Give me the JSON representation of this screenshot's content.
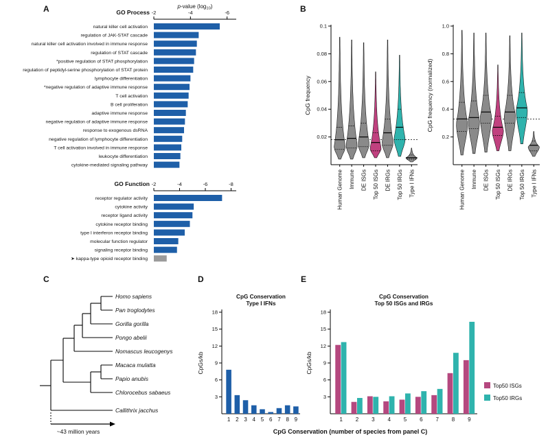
{
  "panels": {
    "A": "A",
    "B": "B",
    "C": "C",
    "D": "D",
    "E": "E"
  },
  "shared_axis_label": "CpG Conservation (number of species from panel C)",
  "tree": {
    "species": [
      "Homo sapiens",
      "Pan troglodytes",
      "Gorilla gorilla",
      "Pongo abelii",
      "Nomascus leucogenys",
      "Macaca mulatta",
      "Papio anubis",
      "Chlorocebus sabaeus",
      "Callithrix jacchus"
    ],
    "annotation": "~43 million years"
  },
  "chart_data": [
    {
      "id": "go_process",
      "type": "bar",
      "orientation": "horizontal",
      "title": "GO Process",
      "xlabel": "p-value (log10)",
      "xticks": [
        "-2",
        "-4",
        "-6"
      ],
      "xlim": [
        -2,
        -6.5
      ],
      "bar_color": "#1e5fa8",
      "label_color": "#1e5fa8",
      "categories": [
        "natural killer cell activation",
        "regulation of JAK-STAT cascade",
        "natural killer cell activation involved in immune response",
        "regulation of STAT cascade",
        "*positive regulation of STAT phosphorylation",
        "regulation of peptidyl-serine phosphorylation of STAT protein",
        "lymphocyte differentiation",
        "*negative regulation of adaptive immune response",
        "T cell activation",
        "B cell proliferation",
        "adaptive immune response",
        "negative regulation of adaptive immune response",
        "response to exogenous dsRNA",
        "negative regulation of lymphocyte differentiation",
        "T cell activation involved in immune response",
        "leukocyte differentiation",
        "cytokine-mediated signaling pathway"
      ],
      "values": [
        -5.6,
        -4.45,
        -4.35,
        -4.3,
        -4.2,
        -4.15,
        -4.0,
        -3.95,
        -3.9,
        -3.85,
        -3.75,
        -3.7,
        -3.65,
        -3.55,
        -3.5,
        -3.45,
        -3.4
      ]
    },
    {
      "id": "go_function",
      "type": "bar",
      "orientation": "horizontal",
      "title": "GO Function",
      "xticks": [
        "-2",
        "-4",
        "-6",
        "-8"
      ],
      "xlim": [
        -2,
        -8.4
      ],
      "bar_color": "#1e5fa8",
      "label_color": "#1e5fa8",
      "categories": [
        "receptor regulator activity",
        "cytokine activity",
        "receptor ligand activity",
        "cytokine receptor binding",
        "type I interferon receptor binding",
        "molecular function regulator",
        "signaling receptor binding",
        "kappa-type opioid receptor binding"
      ],
      "values": [
        -7.3,
        -5.1,
        -5.0,
        -4.8,
        -4.4,
        -3.9,
        -3.8,
        -3.0
      ],
      "highlight": {
        "index": 7,
        "bar_color": "#9b9b9b",
        "label_color": "#8c8c8c",
        "arrow": true
      }
    },
    {
      "id": "cpg_frequency",
      "type": "violin",
      "ylabel": "CpG frequency",
      "yticks": [
        "0.02",
        "0.04",
        "0.06",
        "0.08",
        "0.1"
      ],
      "ylim": [
        0,
        0.1
      ],
      "reference_line": 0.018,
      "groups": [
        {
          "label": "Human Genome",
          "color": "#8a8a8a",
          "min": 0.004,
          "peak": 0.013,
          "max": 0.092,
          "median": 0.018,
          "q1": 0.011,
          "q3": 0.027
        },
        {
          "label": "Immune",
          "color": "#8a8a8a",
          "min": 0.004,
          "peak": 0.014,
          "max": 0.09,
          "median": 0.019,
          "q1": 0.012,
          "q3": 0.028
        },
        {
          "label": "DE ISGs",
          "color": "#8a8a8a",
          "min": 0.005,
          "peak": 0.015,
          "max": 0.088,
          "median": 0.02,
          "q1": 0.013,
          "q3": 0.03
        },
        {
          "label": "Top 50 ISGs",
          "color": "#c0417f",
          "min": 0.005,
          "peak": 0.012,
          "max": 0.067,
          "median": 0.016,
          "q1": 0.01,
          "q3": 0.023
        },
        {
          "label": "DE IRGs",
          "color": "#8a8a8a",
          "min": 0.005,
          "peak": 0.016,
          "max": 0.09,
          "median": 0.023,
          "q1": 0.014,
          "q3": 0.033
        },
        {
          "label": "Top 50 IRGs",
          "color": "#2fb3ad",
          "min": 0.006,
          "peak": 0.019,
          "max": 0.079,
          "median": 0.027,
          "q1": 0.018,
          "q3": 0.04
        },
        {
          "label": "Type I IFNs",
          "color": "#8a8a8a",
          "min": 0.002,
          "peak": 0.005,
          "max": 0.012,
          "median": 0.005,
          "q1": 0.004,
          "q3": 0.007
        }
      ]
    },
    {
      "id": "cpg_frequency_normalized",
      "type": "violin",
      "ylabel": "CpG frequency (normalized)",
      "yticks": [
        "0.2",
        "0.4",
        "0.6",
        "0.8",
        "1.0"
      ],
      "ylim": [
        0,
        1.0
      ],
      "reference_line": 0.33,
      "groups": [
        {
          "label": "Human Genome",
          "color": "#8a8a8a",
          "min": 0.07,
          "peak": 0.3,
          "max": 0.97,
          "median": 0.33,
          "q1": 0.24,
          "q3": 0.45
        },
        {
          "label": "Immune",
          "color": "#8a8a8a",
          "min": 0.08,
          "peak": 0.32,
          "max": 0.95,
          "median": 0.34,
          "q1": 0.26,
          "q3": 0.46
        },
        {
          "label": "DE ISGs",
          "color": "#8a8a8a",
          "min": 0.09,
          "peak": 0.35,
          "max": 0.95,
          "median": 0.38,
          "q1": 0.3,
          "q3": 0.5
        },
        {
          "label": "Top 50 ISGs",
          "color": "#c0417f",
          "min": 0.1,
          "peak": 0.25,
          "max": 0.72,
          "median": 0.27,
          "q1": 0.21,
          "q3": 0.35
        },
        {
          "label": "DE IRGs",
          "color": "#8a8a8a",
          "min": 0.1,
          "peak": 0.36,
          "max": 0.93,
          "median": 0.38,
          "q1": 0.3,
          "q3": 0.5
        },
        {
          "label": "Top 50 IRGs",
          "color": "#2fb3ad",
          "min": 0.15,
          "peak": 0.4,
          "max": 0.95,
          "median": 0.41,
          "q1": 0.34,
          "q3": 0.52
        },
        {
          "label": "Type I IFNs",
          "color": "#8a8a8a",
          "min": 0.06,
          "peak": 0.13,
          "max": 0.24,
          "median": 0.14,
          "q1": 0.1,
          "q3": 0.17
        }
      ]
    },
    {
      "id": "ifn_conservation",
      "type": "bar",
      "title_lines": [
        "CpG Conservation",
        "Type I IFNs"
      ],
      "ylabel": "CpGs/kb",
      "yticks": [
        "3",
        "6",
        "9",
        "12",
        "15",
        "18"
      ],
      "ylim": [
        0,
        18
      ],
      "categories": [
        "1",
        "2",
        "3",
        "4",
        "5",
        "6",
        "7",
        "8",
        "9"
      ],
      "values": [
        7.8,
        3.3,
        2.4,
        1.5,
        0.8,
        0.3,
        1.0,
        1.5,
        1.3
      ],
      "bar_color": "#1e5fa8"
    },
    {
      "id": "isg_irg_conservation",
      "type": "bar_grouped",
      "title_lines": [
        "CpG Conservation",
        "Top 50 ISGs and IRGs"
      ],
      "ylabel": "CpGs/kb",
      "yticks": [
        "3",
        "6",
        "9",
        "12",
        "15",
        "18"
      ],
      "ylim": [
        0,
        18
      ],
      "categories": [
        "1",
        "2",
        "3",
        "4",
        "5",
        "6",
        "7",
        "8",
        "9"
      ],
      "series": [
        {
          "name": "Top50 ISGs",
          "color": "#b5487f",
          "values": [
            12.2,
            2.1,
            3.1,
            2.2,
            2.5,
            3.0,
            3.3,
            7.2,
            9.5
          ]
        },
        {
          "name": "Top50 IRGs",
          "color": "#2fb3ad",
          "values": [
            12.7,
            2.8,
            3.0,
            3.1,
            3.6,
            4.0,
            4.4,
            10.8,
            16.3
          ]
        }
      ],
      "legend_position": "right"
    }
  ]
}
